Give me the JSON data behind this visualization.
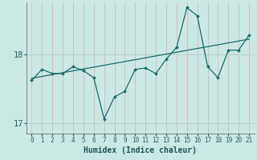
{
  "xlabel": "Humidex (Indice chaleur)",
  "background_color": "#cce8e4",
  "grid_color_v": "#b8d8d4",
  "grid_color_h": "#b0d0cc",
  "line_color": "#1a6b6b",
  "x_values": [
    0,
    1,
    2,
    3,
    4,
    5,
    6,
    7,
    8,
    9,
    10,
    11,
    12,
    13,
    14,
    15,
    16,
    17,
    18,
    19,
    20,
    21
  ],
  "y_values": [
    17.62,
    17.78,
    17.72,
    17.72,
    17.82,
    17.76,
    17.66,
    17.06,
    17.38,
    17.46,
    17.78,
    17.8,
    17.72,
    17.93,
    18.1,
    18.68,
    18.56,
    17.82,
    17.66,
    18.06,
    18.06,
    18.28
  ],
  "trend_x": [
    0,
    21
  ],
  "trend_y": [
    17.65,
    18.22
  ],
  "ylim": [
    16.85,
    18.75
  ],
  "xlim": [
    -0.5,
    21.5
  ],
  "yticks": [
    17,
    18
  ],
  "xticks": [
    0,
    1,
    2,
    3,
    4,
    5,
    6,
    7,
    8,
    9,
    10,
    11,
    12,
    13,
    14,
    15,
    16,
    17,
    18,
    19,
    20,
    21
  ]
}
